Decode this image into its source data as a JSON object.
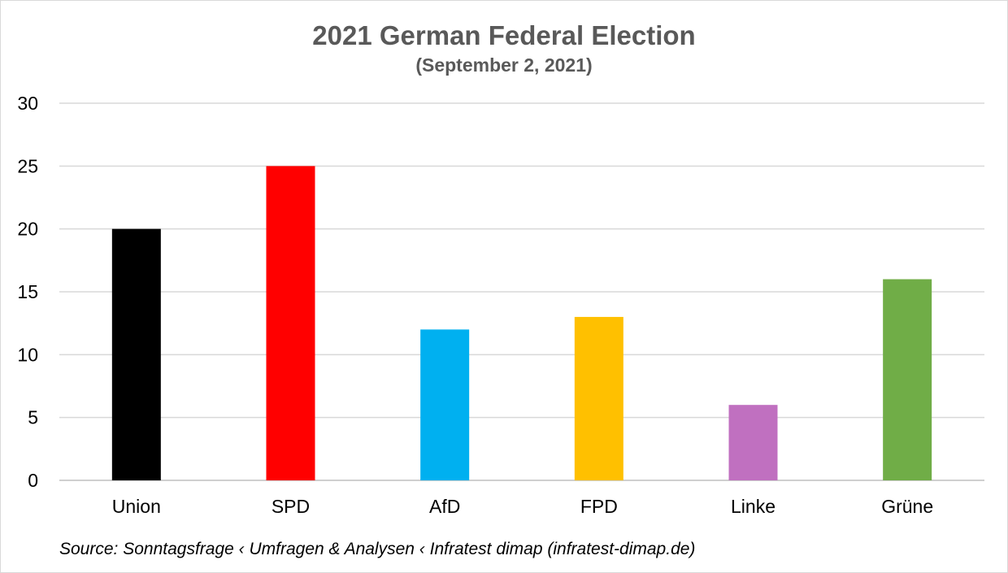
{
  "chart_data": {
    "type": "bar",
    "title": "2021 German Federal Election",
    "subtitle": "(September 2, 2021)",
    "categories": [
      "Union",
      "SPD",
      "AfD",
      "FPD",
      "Linke",
      "Grüne"
    ],
    "values": [
      20,
      25,
      12,
      13,
      6,
      16
    ],
    "colors": [
      "#000000",
      "#ff0000",
      "#00b0f0",
      "#ffc000",
      "#c070c0",
      "#70ad47"
    ],
    "xlabel": "",
    "ylabel": "",
    "ylim": [
      0,
      30
    ],
    "yticks": [
      "0",
      "5",
      "10",
      "15",
      "20",
      "25",
      "30"
    ],
    "grid": true,
    "legend": "none",
    "source": "Source: Sonntagsfrage ‹ Umfragen & Analysen ‹ Infratest dimap (infratest-dimap.de)"
  }
}
